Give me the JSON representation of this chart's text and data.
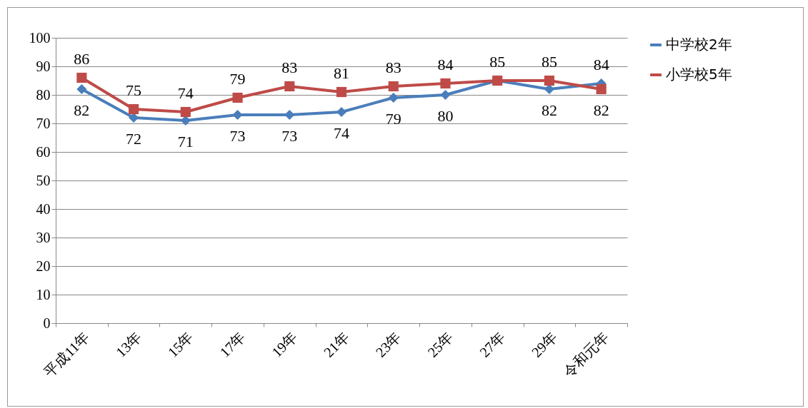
{
  "chart_data": {
    "type": "line",
    "categories": [
      "平成11年",
      "13年",
      "15年",
      "17年",
      "19年",
      "21年",
      "23年",
      "25年",
      "27年",
      "29年",
      "令和元年"
    ],
    "series": [
      {
        "name": "中学校2年",
        "color": "#4a7ebb",
        "marker": "diamond",
        "values": [
          82,
          72,
          71,
          73,
          73,
          74,
          79,
          80,
          85,
          82,
          84
        ],
        "value_labels": [
          "82",
          "72",
          "71",
          "73",
          "73",
          "74",
          "79",
          "80",
          null,
          "82",
          "84"
        ]
      },
      {
        "name": "小学校5年",
        "color": "#be4b48",
        "marker": "square",
        "values": [
          86,
          75,
          74,
          79,
          83,
          81,
          83,
          84,
          85,
          85,
          82
        ],
        "value_labels": [
          "86",
          "75",
          "74",
          "79",
          "83",
          "81",
          "83",
          "84",
          "85",
          "85",
          "82"
        ]
      }
    ],
    "ylim": [
      0,
      100
    ],
    "yticks": [
      0,
      10,
      20,
      30,
      40,
      50,
      60,
      70,
      80,
      90,
      100
    ],
    "grid": "y",
    "legend": "right"
  }
}
